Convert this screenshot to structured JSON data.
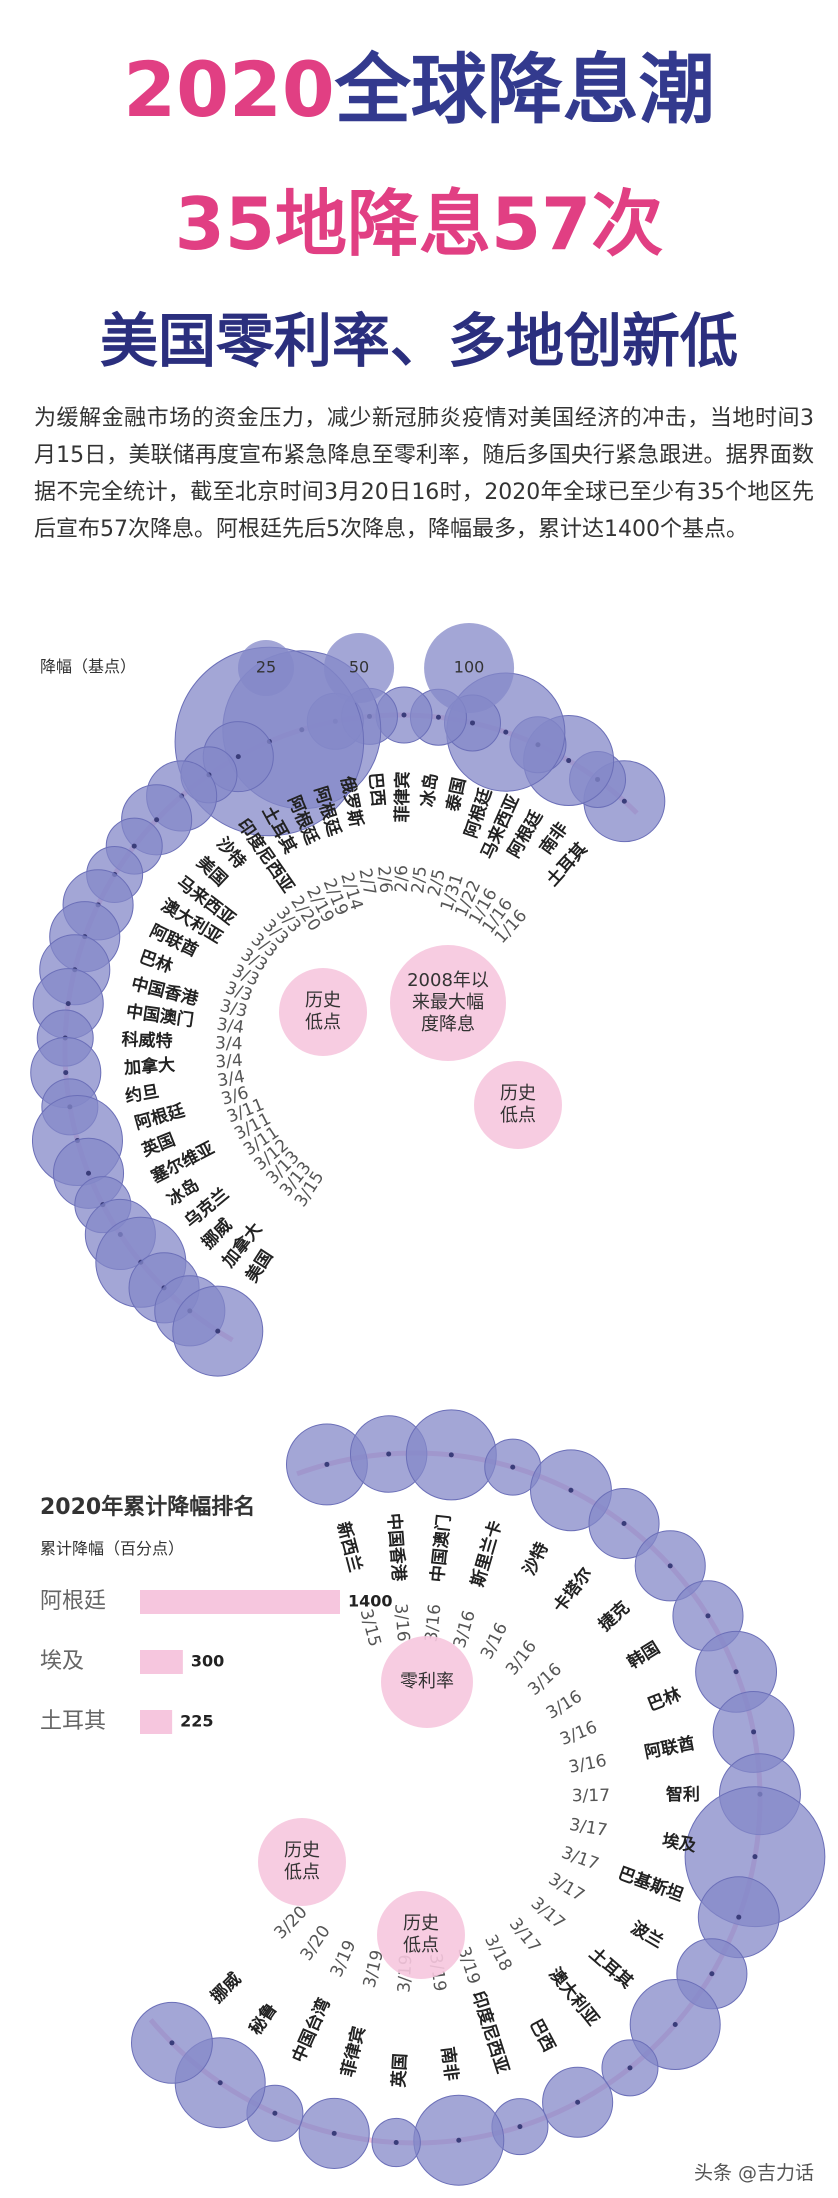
{
  "title": {
    "line1_a": "2020",
    "line1_b": "全球降息潮",
    "line2": "35地降息57次",
    "line3": "美国零利率、多地创新低"
  },
  "intro": "为缓解金融市场的资金压力，减少新冠肺炎疫情对美国经济的冲击，当地时间3月15日，美联储再度宣布紧急降息至零利率，随后多国央行紧急跟进。据界面数据不完全统计，截至北京时间3月20日16时，2020年全球已至少有35个地区先后宣布57次降息。阿根廷先后5次降息，降幅最多，累计达1400个基点。",
  "legend": {
    "label": "降幅（基点）",
    "sizes": [
      25,
      50,
      100
    ]
  },
  "callouts": {
    "historic_low": "历史低点",
    "max_2008_1": "2008年以",
    "max_2008_2": "来最大幅",
    "max_2008_3": "度降息",
    "zero_rate": "零利率"
  },
  "ranking": {
    "title": "2020年累计降幅排名",
    "subtitle": "累计降幅（百分点）",
    "max": 1400,
    "items": [
      {
        "name": "阿根廷",
        "value": 1400
      },
      {
        "name": "埃及",
        "value": 300
      },
      {
        "name": "土耳其",
        "value": 225
      }
    ]
  },
  "footer": "头条 @吉力话",
  "colors": {
    "pink": "#e13f83",
    "navy": "#2b2f7e",
    "bubble": "#8488c8",
    "track": "#f2c4dc"
  },
  "chart_data": {
    "type": "bubble-spiral",
    "unit": "基点",
    "events": [
      {
        "date": "1/16",
        "country": "土耳其",
        "bp": 75
      },
      {
        "date": "1/16",
        "country": "南非",
        "bp": 25
      },
      {
        "date": "1/16",
        "country": "阿根廷",
        "bp": 100
      },
      {
        "date": "1/22",
        "country": "马来西亚",
        "bp": 25
      },
      {
        "date": "1/31",
        "country": "阿根廷",
        "bp": 200
      },
      {
        "date": "2/5",
        "country": "泰国",
        "bp": 25,
        "note": "历史低点"
      },
      {
        "date": "2/5",
        "country": "冰岛",
        "bp": 25
      },
      {
        "date": "2/6",
        "country": "菲律宾",
        "bp": 25
      },
      {
        "date": "2/6",
        "country": "巴西",
        "bp": 25
      },
      {
        "date": "2/7",
        "country": "俄罗斯",
        "bp": 25
      },
      {
        "date": "2/14",
        "country": "阿根廷",
        "bp": 400
      },
      {
        "date": "2/19",
        "country": "阿根廷",
        "bp": 600
      },
      {
        "date": "2/19",
        "country": "土耳其",
        "bp": 50
      },
      {
        "date": "2/20",
        "country": "印度尼西亚",
        "bp": 25
      },
      {
        "date": "3/3",
        "country": "沙特",
        "bp": 50
      },
      {
        "date": "3/3",
        "country": "美国",
        "bp": 50,
        "note": "2008年以来最大幅度降息"
      },
      {
        "date": "3/3",
        "country": "马来西亚",
        "bp": 25
      },
      {
        "date": "3/3",
        "country": "澳大利亚",
        "bp": 25,
        "note": "历史低点"
      },
      {
        "date": "3/3",
        "country": "阿联酋",
        "bp": 50
      },
      {
        "date": "3/3",
        "country": "巴林",
        "bp": 50
      },
      {
        "date": "3/3",
        "country": "中国香港",
        "bp": 50
      },
      {
        "date": "3/4",
        "country": "中国澳门",
        "bp": 50
      },
      {
        "date": "3/4",
        "country": "科威特",
        "bp": 25
      },
      {
        "date": "3/4",
        "country": "加拿大",
        "bp": 50
      },
      {
        "date": "3/4",
        "country": "约旦",
        "bp": 25
      },
      {
        "date": "3/6",
        "country": "阿根廷",
        "bp": 100
      },
      {
        "date": "3/11",
        "country": "英国",
        "bp": 50
      },
      {
        "date": "3/11",
        "country": "塞尔维亚",
        "bp": 25
      },
      {
        "date": "3/11",
        "country": "冰岛",
        "bp": 50
      },
      {
        "date": "3/12",
        "country": "乌克兰",
        "bp": 100
      },
      {
        "date": "3/13",
        "country": "挪威",
        "bp": 50
      },
      {
        "date": "3/13",
        "country": "加拿大",
        "bp": 50
      },
      {
        "date": "3/15",
        "country": "美国",
        "bp": 100,
        "note": "零利率"
      },
      {
        "date": "3/15",
        "country": "新西兰",
        "bp": 75
      },
      {
        "date": "3/16",
        "country": "中国香港",
        "bp": 64
      },
      {
        "date": "3/16",
        "country": "中国澳门",
        "bp": 100
      },
      {
        "date": "3/16",
        "country": "斯里兰卡",
        "bp": 25
      },
      {
        "date": "3/16",
        "country": "沙特",
        "bp": 75
      },
      {
        "date": "3/16",
        "country": "卡塔尔",
        "bp": 50
      },
      {
        "date": "3/16",
        "country": "捷克",
        "bp": 50
      },
      {
        "date": "3/16",
        "country": "韩国",
        "bp": 50
      },
      {
        "date": "3/16",
        "country": "巴林",
        "bp": 75
      },
      {
        "date": "3/16",
        "country": "阿联酋",
        "bp": 75
      },
      {
        "date": "3/17",
        "country": "智利",
        "bp": 75
      },
      {
        "date": "3/17",
        "country": "埃及",
        "bp": 300
      },
      {
        "date": "3/17",
        "country": "巴基斯坦",
        "bp": 75
      },
      {
        "date": "3/17",
        "country": "波兰",
        "bp": 50
      },
      {
        "date": "3/17",
        "country": "土耳其",
        "bp": 100
      },
      {
        "date": "3/17",
        "country": "澳大利亚",
        "bp": 25,
        "note": "历史低点"
      },
      {
        "date": "3/18",
        "country": "巴西",
        "bp": 50
      },
      {
        "date": "3/19",
        "country": "印度尼西亚",
        "bp": 25
      },
      {
        "date": "3/19",
        "country": "南非",
        "bp": 100
      },
      {
        "date": "3/19",
        "country": "英国",
        "bp": 15
      },
      {
        "date": "3/19",
        "country": "菲律宾",
        "bp": 50
      },
      {
        "date": "3/19",
        "country": "中国台湾",
        "bp": 25,
        "note": "历史低点"
      },
      {
        "date": "3/20",
        "country": "秘鲁",
        "bp": 100
      },
      {
        "date": "3/20",
        "country": "挪威",
        "bp": 75
      }
    ]
  }
}
